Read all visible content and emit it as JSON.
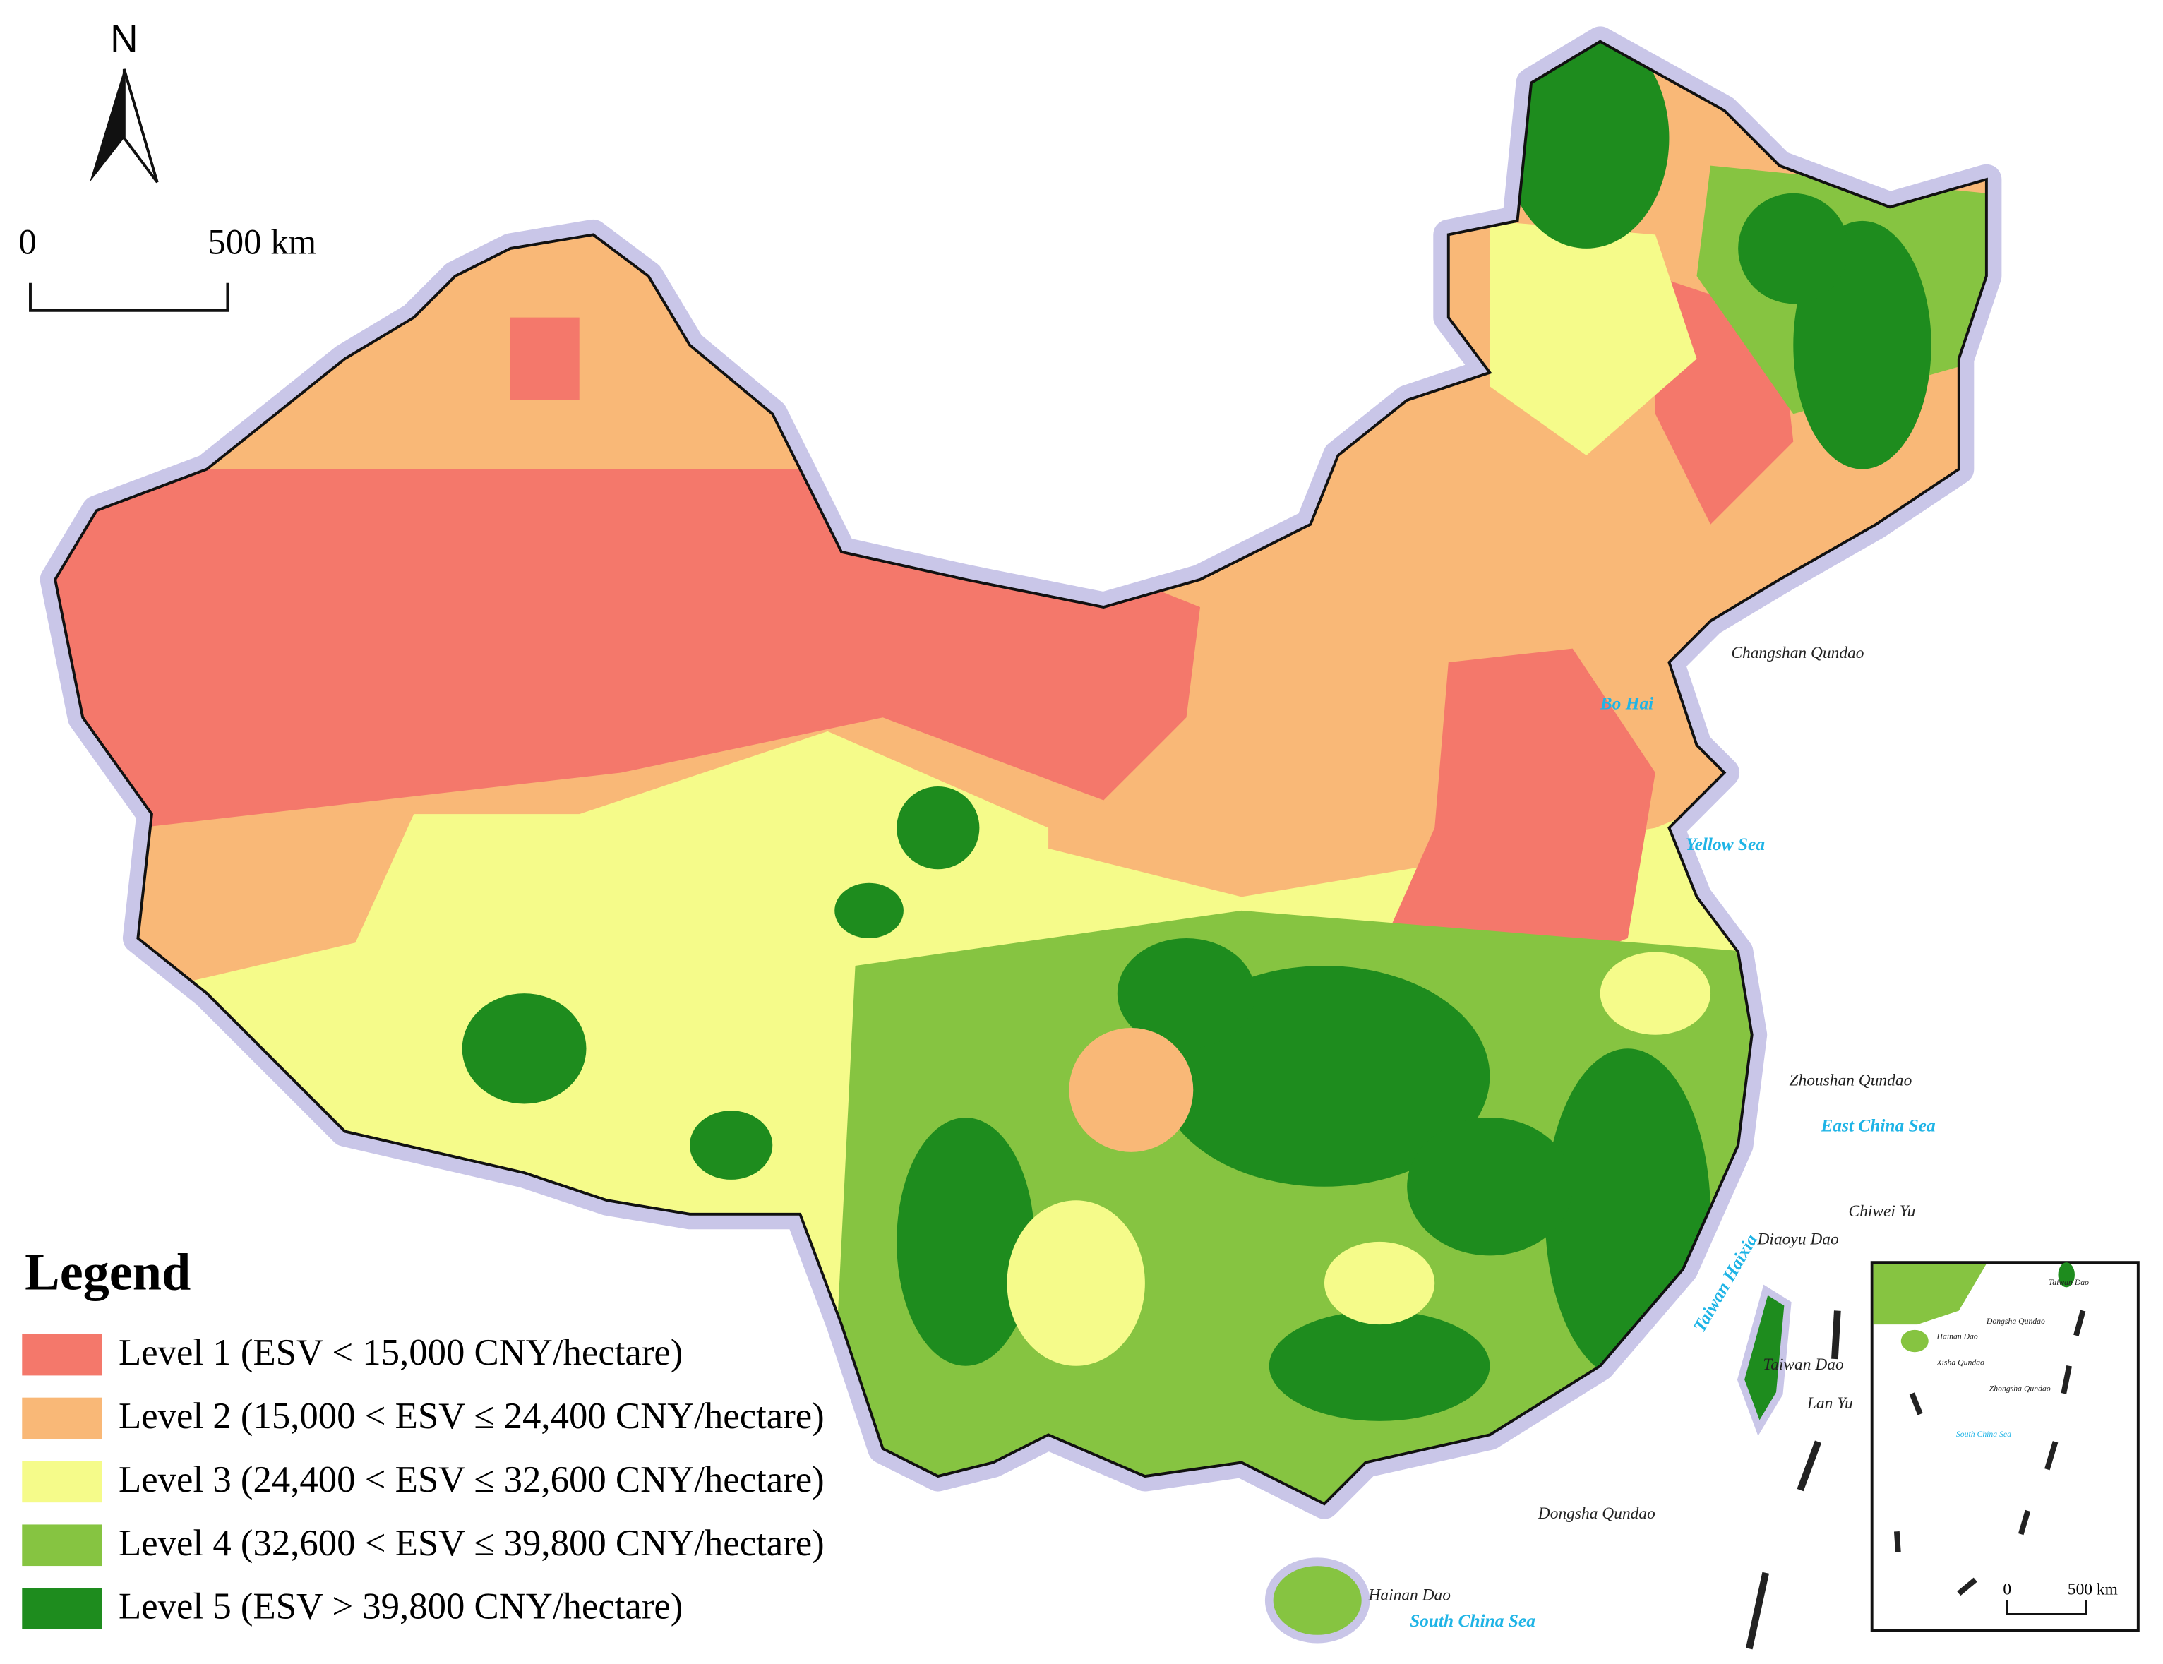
{
  "north_label": "N",
  "scale_bar": {
    "zero": "0",
    "length": "500 km"
  },
  "legend": {
    "title": "Legend",
    "items": [
      {
        "label": "Level 1 (ESV < 15,000 CNY/hectare)",
        "color": "#f4786b"
      },
      {
        "label": "Level 2 (15,000 < ESV ≤ 24,400 CNY/hectare)",
        "color": "#f9b877"
      },
      {
        "label": "Level 3 (24,400 < ESV ≤ 32,600 CNY/hectare)",
        "color": "#f5fb8a"
      },
      {
        "label": "Level 4 (32,600 < ESV ≤ 39,800 CNY/hectare)",
        "color": "#86c441"
      },
      {
        "label": "Level 5 (ESV > 39,800 CNY/hectare)",
        "color": "#1e8c1e"
      }
    ]
  },
  "places": [
    {
      "text": "Changshan Qundao",
      "color": "#222222"
    },
    {
      "text": "Bo Hai",
      "color": "#1fb4e6"
    },
    {
      "text": "Yellow Sea",
      "color": "#1fb4e6"
    },
    {
      "text": "Zhoushan Qundao",
      "color": "#222222"
    },
    {
      "text": "East China Sea",
      "color": "#1fb4e6"
    },
    {
      "text": "Chiwei Yu",
      "color": "#222222"
    },
    {
      "text": "Diaoyu Dao",
      "color": "#222222"
    },
    {
      "text": "Taiwan Haixia",
      "color": "#1fb4e6"
    },
    {
      "text": "Taiwan Dao",
      "color": "#222222"
    },
    {
      "text": "Lan Yu",
      "color": "#222222"
    },
    {
      "text": "Dongsha Qundao",
      "color": "#222222"
    },
    {
      "text": "Hainan Dao",
      "color": "#222222"
    },
    {
      "text": "South China Sea",
      "color": "#1fb4e6"
    }
  ],
  "inset": {
    "places": [
      {
        "text": "Taiwan Dao",
        "color": "#222222"
      },
      {
        "text": "Dongsha Qundao",
        "color": "#222222"
      },
      {
        "text": "Hainan Dao",
        "color": "#222222"
      },
      {
        "text": "Xisha Qundao",
        "color": "#222222"
      },
      {
        "text": "Zhongsha Qundao",
        "color": "#222222"
      },
      {
        "text": "South China Sea",
        "color": "#1fb4e6"
      }
    ],
    "scale_zero": "0",
    "scale_length": "500 km"
  }
}
